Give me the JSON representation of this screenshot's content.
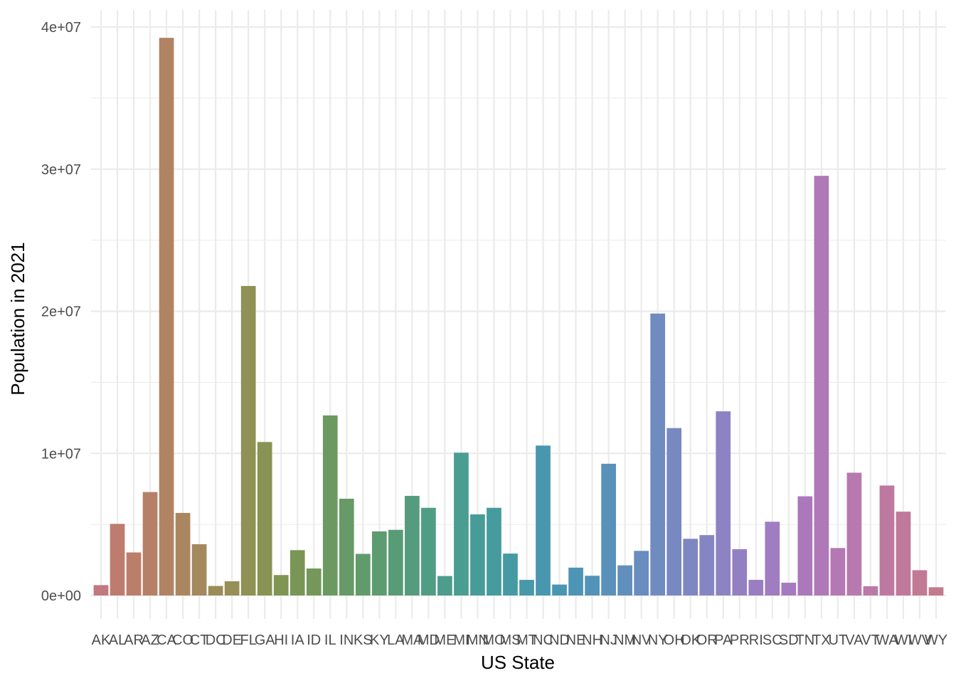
{
  "chart_data": {
    "type": "bar",
    "title": "",
    "xlabel": "US State",
    "ylabel": "Population in 2021",
    "ylim": [
      0,
      40000000
    ],
    "yticks": [
      {
        "value": 0,
        "label": "0e+00"
      },
      {
        "value": 10000000,
        "label": "1e+07"
      },
      {
        "value": 20000000,
        "label": "2e+07"
      },
      {
        "value": 30000000,
        "label": "3e+07"
      },
      {
        "value": 40000000,
        "label": "4e+07"
      }
    ],
    "grid": true,
    "legend": "none",
    "categories": [
      "AK",
      "AL",
      "AR",
      "AZ",
      "CA",
      "CO",
      "CT",
      "DC",
      "DE",
      "FL",
      "GA",
      "HI",
      "IA",
      "ID",
      "IL",
      "IN",
      "KS",
      "KY",
      "LA",
      "MA",
      "MD",
      "ME",
      "MI",
      "MN",
      "MO",
      "MS",
      "MT",
      "NC",
      "ND",
      "NE",
      "NH",
      "NJ",
      "NM",
      "NV",
      "NY",
      "OH",
      "OK",
      "OR",
      "PA",
      "PR",
      "RI",
      "SC",
      "SD",
      "TN",
      "TX",
      "UT",
      "VA",
      "VT",
      "WA",
      "WI",
      "WV",
      "WY"
    ],
    "values": [
      730000,
      5040000,
      3030000,
      7280000,
      39240000,
      5810000,
      3610000,
      670000,
      1000000,
      21780000,
      10800000,
      1440000,
      3190000,
      1900000,
      12670000,
      6810000,
      2930000,
      4510000,
      4620000,
      7010000,
      6170000,
      1370000,
      10050000,
      5710000,
      6170000,
      2950000,
      1100000,
      10550000,
      770000,
      1960000,
      1390000,
      9270000,
      2120000,
      3140000,
      19840000,
      11780000,
      3990000,
      4250000,
      12960000,
      3260000,
      1100000,
      5190000,
      900000,
      6980000,
      29530000,
      3340000,
      8640000,
      650000,
      7740000,
      5900000,
      1780000,
      580000
    ],
    "colors": [
      "#C1787F",
      "#BE7C6E",
      "#BB7E6A",
      "#B68066",
      "#B08363",
      "#AA8660",
      "#A3895D",
      "#9C8C58",
      "#968F56",
      "#8F9254",
      "#899353",
      "#819553",
      "#7A9656",
      "#73985A",
      "#6C995F",
      "#669A66",
      "#619B6B",
      "#5D9B70",
      "#589C77",
      "#559C7E",
      "#519D84",
      "#4D9C8C",
      "#4A9D91",
      "#479C98",
      "#469B9E",
      "#469AA4",
      "#4799A9",
      "#4897AE",
      "#4A96B1",
      "#4E95B5",
      "#5493B9",
      "#5A91BB",
      "#618FBC",
      "#688DBE",
      "#708BBF",
      "#7889C1",
      "#7F87C2",
      "#8685C3",
      "#8D83C3",
      "#9380C3",
      "#9A7EC2",
      "#A07CC1",
      "#A67ABE",
      "#AB78BB",
      "#B078B7",
      "#B478B3",
      "#B879AE",
      "#BC79A8",
      "#BE79A1",
      "#C0799A",
      "#C17A94",
      "#C27A8D"
    ]
  }
}
